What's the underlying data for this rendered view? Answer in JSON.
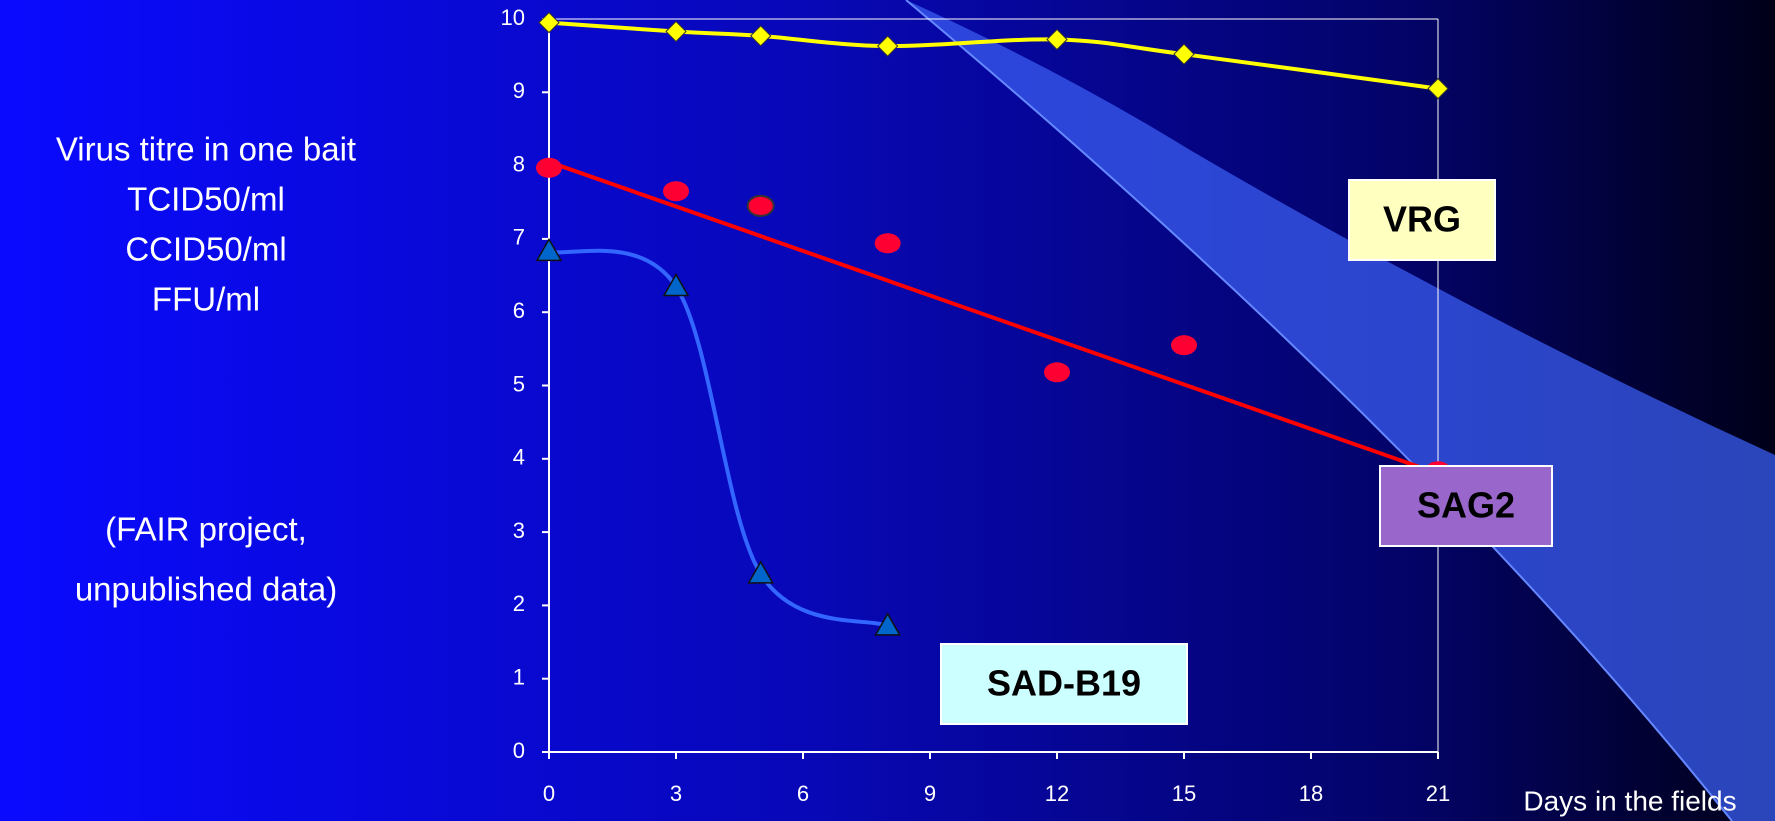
{
  "chart_data": {
    "type": "line",
    "y_axis_label": [
      "Virus titre in one bait",
      "TCID50/ml",
      "CCID50/ml",
      "FFU/ml"
    ],
    "note": [
      "(FAIR project,",
      "unpublished data)"
    ],
    "x_axis_label": "Days in the fields",
    "xlim": [
      0,
      21
    ],
    "xticks": [
      0,
      3,
      6,
      9,
      12,
      15,
      18,
      21
    ],
    "ylim": [
      0,
      10
    ],
    "yticks": [
      0,
      1,
      2,
      3,
      4,
      5,
      6,
      7,
      8,
      9,
      10
    ],
    "series": [
      {
        "name": "VRG",
        "color": "#ffff00",
        "marker": "diamond",
        "label_color": "#ffffc0",
        "x": [
          0,
          3,
          5,
          8,
          12,
          15,
          21
        ],
        "values": [
          9.95,
          9.83,
          9.77,
          9.63,
          9.72,
          9.52,
          9.05
        ]
      },
      {
        "name": "SAG2",
        "color": "#ff0033",
        "marker": "circle",
        "label_color": "#9966cc",
        "x": [
          0,
          3,
          5,
          8,
          12,
          15,
          21
        ],
        "values": [
          7.97,
          7.65,
          7.45,
          6.94,
          5.18,
          5.55,
          3.83
        ],
        "trend": {
          "x": [
            0,
            21
          ],
          "values": [
            8.05,
            3.8
          ]
        }
      },
      {
        "name": "SAD-B19",
        "color": "#3366ff",
        "marker": "triangle",
        "label_color": "#ccffff",
        "x": [
          0,
          3,
          5,
          8
        ],
        "values": [
          6.83,
          6.35,
          2.43,
          1.72
        ]
      }
    ]
  }
}
